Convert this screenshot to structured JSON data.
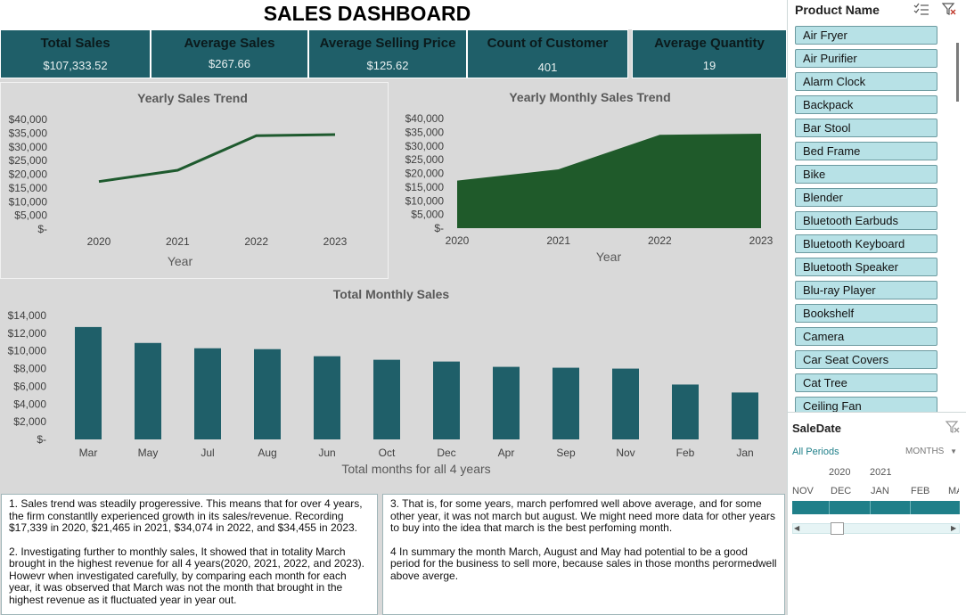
{
  "dashboard": {
    "title": "SALES DASHBOARD"
  },
  "kpis": [
    {
      "label": "Total Sales",
      "value": "$107,333.52"
    },
    {
      "label": "Average Sales",
      "value": "$267.66"
    },
    {
      "label": "Average Selling Price",
      "value": "$125.62"
    },
    {
      "label": "Count of Customer",
      "value": "401"
    },
    {
      "label": "Average Quantity",
      "value": "19"
    }
  ],
  "colors": {
    "kpi_bg": "#1f5f69",
    "line": "#1e5a2e",
    "area": "#1f5a2a",
    "bar": "#1f5f69",
    "slicer_item": "#b7e1e6",
    "timeline_bar": "#1f7f89"
  },
  "chart_data": [
    {
      "type": "line",
      "title": "Yearly Sales Trend",
      "xlabel": "Year",
      "ylabel": "",
      "x": [
        "2020",
        "2021",
        "2022",
        "2023"
      ],
      "series": [
        {
          "values": [
            17339,
            21465,
            34074,
            34455
          ]
        }
      ],
      "yticks": [
        "$40,000",
        "$35,000",
        "$30,000",
        "$25,000",
        "$20,000",
        "$15,000",
        "$10,000",
        "$5,000",
        "$-"
      ],
      "ylim": [
        0,
        40000
      ],
      "grid": false
    },
    {
      "type": "area",
      "title": "Yearly Monthly Sales Trend",
      "xlabel": "Year",
      "ylabel": "",
      "x": [
        "2020",
        "2021",
        "2022",
        "2023"
      ],
      "series": [
        {
          "values": [
            17339,
            21465,
            34074,
            34455
          ]
        }
      ],
      "yticks": [
        "$40,000",
        "$35,000",
        "$30,000",
        "$25,000",
        "$20,000",
        "$15,000",
        "$10,000",
        "$5,000",
        "$-"
      ],
      "ylim": [
        0,
        40000
      ],
      "grid": false
    },
    {
      "type": "bar",
      "title": "Total Monthly Sales",
      "xlabel": "Total months for all 4 years",
      "ylabel": "",
      "categories": [
        "Mar",
        "May",
        "Jul",
        "Aug",
        "Jun",
        "Oct",
        "Dec",
        "Apr",
        "Sep",
        "Nov",
        "Feb",
        "Jan"
      ],
      "values": [
        12700,
        10900,
        10300,
        10200,
        9400,
        9000,
        8800,
        8200,
        8100,
        8000,
        6200,
        5300
      ],
      "yticks": [
        "$14,000",
        "$12,000",
        "$10,000",
        "$8,000",
        "$6,000",
        "$4,000",
        "$2,000",
        "$-"
      ],
      "ylim": [
        0,
        14000
      ],
      "grid": false
    }
  ],
  "notes": {
    "left": [
      "1. Sales trend was steadily progeressive. This means that for over 4 years, the firm constantlly experienced growth in its sales/revenue. Recording $17,339 in 2020, $21,465 in 2021, $34,074 in 2022, and $34,455 in 2023.",
      "2. Investigating further to monthly sales, It showed that in totality March brought in the highest revenue for all 4 years(2020, 2021, 2022, and 2023). Howevr when investigated carefully, by comparing each month for each year, it was observed that March was not the month that brought in the highest revenue as it fluctuated year in year out."
    ],
    "right": [
      "3. That is, for some years, march perfomred well above average, and for some other year, it was not march but august. We might need more data for other years to buy into the idea that march is the best perfoming month.",
      "4 In summary the month March, August and May had potential to be a good period for the business to sell more, because sales in those months perormedwell above averge."
    ]
  },
  "slicer": {
    "header": "Product Name",
    "multiselect_icon": "multi-select-icon",
    "clear_icon": "clear-filter-icon",
    "items": [
      "Air Fryer",
      "Air Purifier",
      "Alarm Clock",
      "Backpack",
      "Bar Stool",
      "Bed Frame",
      "Bike",
      "Blender",
      "Bluetooth Earbuds",
      "Bluetooth Keyboard",
      "Bluetooth Speaker",
      "Blu-ray Player",
      "Bookshelf",
      "Camera",
      "Car Seat Covers",
      "Cat Tree",
      "Ceiling Fan"
    ]
  },
  "timeline": {
    "header": "SaleDate",
    "all_periods": "All Periods",
    "level": "MONTHS",
    "years": [
      "2020",
      "2021"
    ],
    "months": [
      "NOV",
      "DEC",
      "JAN",
      "FEB",
      "MA"
    ],
    "clear_icon": "clear-filter-icon"
  }
}
